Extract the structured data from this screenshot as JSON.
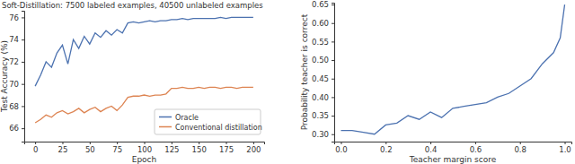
{
  "chart_data": [
    {
      "type": "line",
      "title": "Soft-Distillation: 7500 labeled examples, 40500 unlabeled examples",
      "x_label": "Epoch",
      "y_label": "Test Accuracy (%)",
      "x": [
        0,
        5,
        10,
        15,
        20,
        25,
        30,
        35,
        40,
        45,
        50,
        55,
        60,
        65,
        70,
        75,
        80,
        85,
        90,
        95,
        100,
        105,
        110,
        115,
        120,
        125,
        130,
        135,
        140,
        145,
        150,
        155,
        160,
        165,
        170,
        175,
        180,
        185,
        190,
        195,
        200
      ],
      "series": [
        {
          "name": "Oracle",
          "color": "#4c72b0",
          "values": [
            69.8,
            70.8,
            72.0,
            71.5,
            72.8,
            73.5,
            71.8,
            74.0,
            73.2,
            74.3,
            73.6,
            74.6,
            74.2,
            74.8,
            74.4,
            74.9,
            74.6,
            75.5,
            75.6,
            75.5,
            75.6,
            75.7,
            75.6,
            75.7,
            75.7,
            75.8,
            75.8,
            75.9,
            75.8,
            75.9,
            75.9,
            75.9,
            75.9,
            75.9,
            76.0,
            75.9,
            76.0,
            76.0,
            76.0,
            76.0,
            76.0
          ]
        },
        {
          "name": "Conventional distillation",
          "color": "#dd8452",
          "values": [
            66.5,
            66.8,
            67.2,
            67.0,
            67.4,
            67.6,
            67.3,
            67.5,
            67.8,
            67.4,
            67.7,
            67.9,
            67.5,
            67.8,
            68.0,
            67.6,
            68.1,
            68.8,
            68.9,
            68.9,
            69.0,
            68.9,
            69.0,
            69.0,
            69.1,
            69.6,
            69.6,
            69.7,
            69.6,
            69.6,
            69.7,
            69.6,
            69.7,
            69.7,
            69.6,
            69.7,
            69.7,
            69.6,
            69.7,
            69.7,
            69.7
          ]
        }
      ],
      "xlim": [
        -10,
        210
      ],
      "xticks": [
        0,
        25,
        50,
        75,
        100,
        125,
        150,
        175,
        200
      ],
      "ylim": [
        64.8,
        76.6
      ],
      "yticks": [
        66,
        68,
        70,
        72,
        74,
        76
      ],
      "legend": "lower right",
      "grid": false
    },
    {
      "type": "line",
      "x_label": "Teacher margin score",
      "y_label": "Probability teacher is correct",
      "x": [
        0,
        0.05,
        0.1,
        0.15,
        0.2,
        0.25,
        0.3,
        0.35,
        0.4,
        0.45,
        0.5,
        0.55,
        0.6,
        0.65,
        0.7,
        0.75,
        0.8,
        0.85,
        0.9,
        0.95,
        0.98,
        1.0
      ],
      "values": [
        0.31,
        0.31,
        0.305,
        0.3,
        0.325,
        0.33,
        0.35,
        0.34,
        0.36,
        0.345,
        0.37,
        0.375,
        0.38,
        0.385,
        0.4,
        0.41,
        0.43,
        0.45,
        0.49,
        0.52,
        0.56,
        0.65
      ],
      "color": "#4c72b0",
      "xlim": [
        -0.03,
        1.03
      ],
      "xticks": [
        {
          "value": 0,
          "label": "0.0"
        },
        0.2,
        0.4,
        0.6,
        0.8,
        {
          "value": 1,
          "label": "1.0"
        }
      ],
      "ylim": [
        0.28,
        0.655
      ],
      "yticks": [
        {
          "value": 0.3,
          "label": "0.30"
        },
        0.35,
        {
          "value": 0.4,
          "label": "0.40"
        },
        0.45,
        {
          "value": 0.5,
          "label": "0.50"
        },
        0.55,
        {
          "value": 0.6,
          "label": "0.60"
        },
        0.65
      ],
      "grid": false
    }
  ]
}
